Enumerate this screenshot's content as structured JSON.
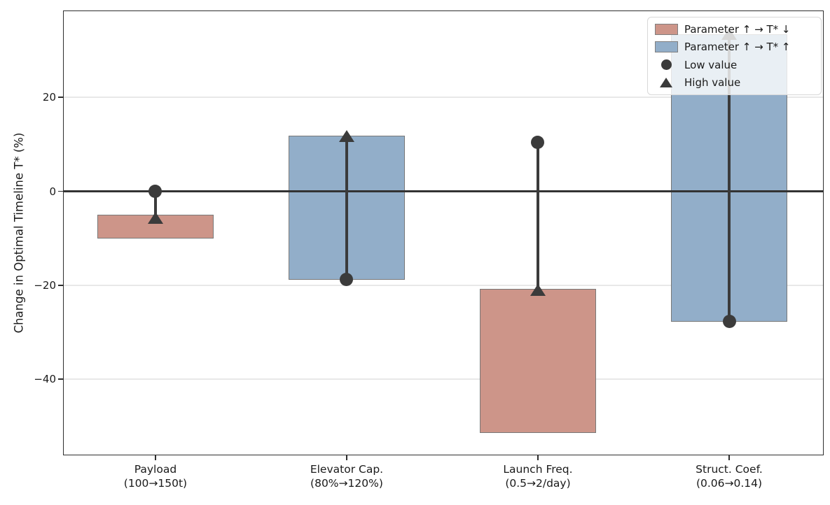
{
  "chart_data": {
    "type": "bar",
    "subtype": "tornado-sensitivity",
    "title": "",
    "xlabel": "",
    "ylabel": "Change in Optimal Timeline T* (%)",
    "ylim": [
      -56.2,
      38.5
    ],
    "yticks": [
      20,
      0,
      -20,
      -40
    ],
    "grid": "horizontal-only",
    "zero_line_value": 0,
    "legend_position": "upper-right",
    "categories": [
      {
        "label": "Payload",
        "range_label": "(100→150t)",
        "effect": "down",
        "bar_bottom": -10,
        "bar_top": -5,
        "low_value_change": 0,
        "high_value_change": -5.6
      },
      {
        "label": "Elevator Cap.",
        "range_label": "(80%→120%)",
        "effect": "up",
        "bar_bottom": -18.8,
        "bar_top": 11.8,
        "low_value_change": -18.8,
        "high_value_change": 11.8
      },
      {
        "label": "Launch Freq.",
        "range_label": "(0.5→2/day)",
        "effect": "down",
        "bar_bottom": -51.5,
        "bar_top": -20.7,
        "low_value_change": 10.5,
        "high_value_change": -21.0
      },
      {
        "label": "Struct. Coef.",
        "range_label": "(0.06→0.14)",
        "effect": "up",
        "bar_bottom": -27.7,
        "bar_top": 33.5,
        "low_value_change": -27.7,
        "high_value_change": 33.5
      }
    ],
    "legend_items": [
      {
        "marker": "swatch-down",
        "label": "Parameter ↑ → T* ↓"
      },
      {
        "marker": "swatch-up",
        "label": "Parameter ↑ → T* ↑"
      },
      {
        "marker": "circle",
        "label": "Low value"
      },
      {
        "marker": "triangle",
        "label": "High value"
      }
    ],
    "colors": {
      "down": "#CD9589",
      "up": "#92AEC9",
      "bar_edge": "#787878",
      "marker": "#3B3B3B",
      "grid": "#E8E8E8",
      "spine": "#2E2E2E",
      "zero_line": "#333333"
    }
  }
}
